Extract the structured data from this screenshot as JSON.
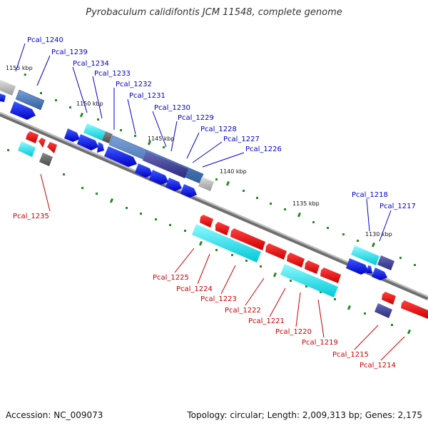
{
  "title": "Pyrobaculum calidifontis JCM 11548, complete genome",
  "footer": {
    "accession": "Accession: NC_009073",
    "topology": "Topology: circular; Length: 2,009,313 bp; Genes: 2,175"
  },
  "colors": {
    "forward_label": "#0000cc",
    "reverse_label": "#cc0000",
    "backbone": "#808080",
    "tick": "#228b22",
    "blue_gene": "#0000ee",
    "red_gene": "#ee0000",
    "cyan_gene": "#00e5ee",
    "steel_gene": "#4f81bd",
    "purple_gene": "#3f3f9f",
    "grey_gene": "#b0b0b0"
  },
  "kbp_labels": [
    "1155 kbp",
    "1150 kbp",
    "1145 kbp",
    "1140 kbp",
    "1135 kbp",
    "1130 kbp"
  ],
  "forward_genes": [
    "Pcal_1240",
    "Pcal_1239",
    "Pcal_1234",
    "Pcal_1233",
    "Pcal_1232",
    "Pcal_1231",
    "Pcal_1230",
    "Pcal_1229",
    "Pcal_1228",
    "Pcal_1227",
    "Pcal_1226",
    "Pcal_1218",
    "Pcal_1217"
  ],
  "reverse_genes": [
    "Pcal_1235",
    "Pcal_1225",
    "Pcal_1224",
    "Pcal_1223",
    "Pcal_1222",
    "Pcal_1221",
    "Pcal_1220",
    "Pcal_1219",
    "Pcal_1215",
    "Pcal_1214"
  ]
}
